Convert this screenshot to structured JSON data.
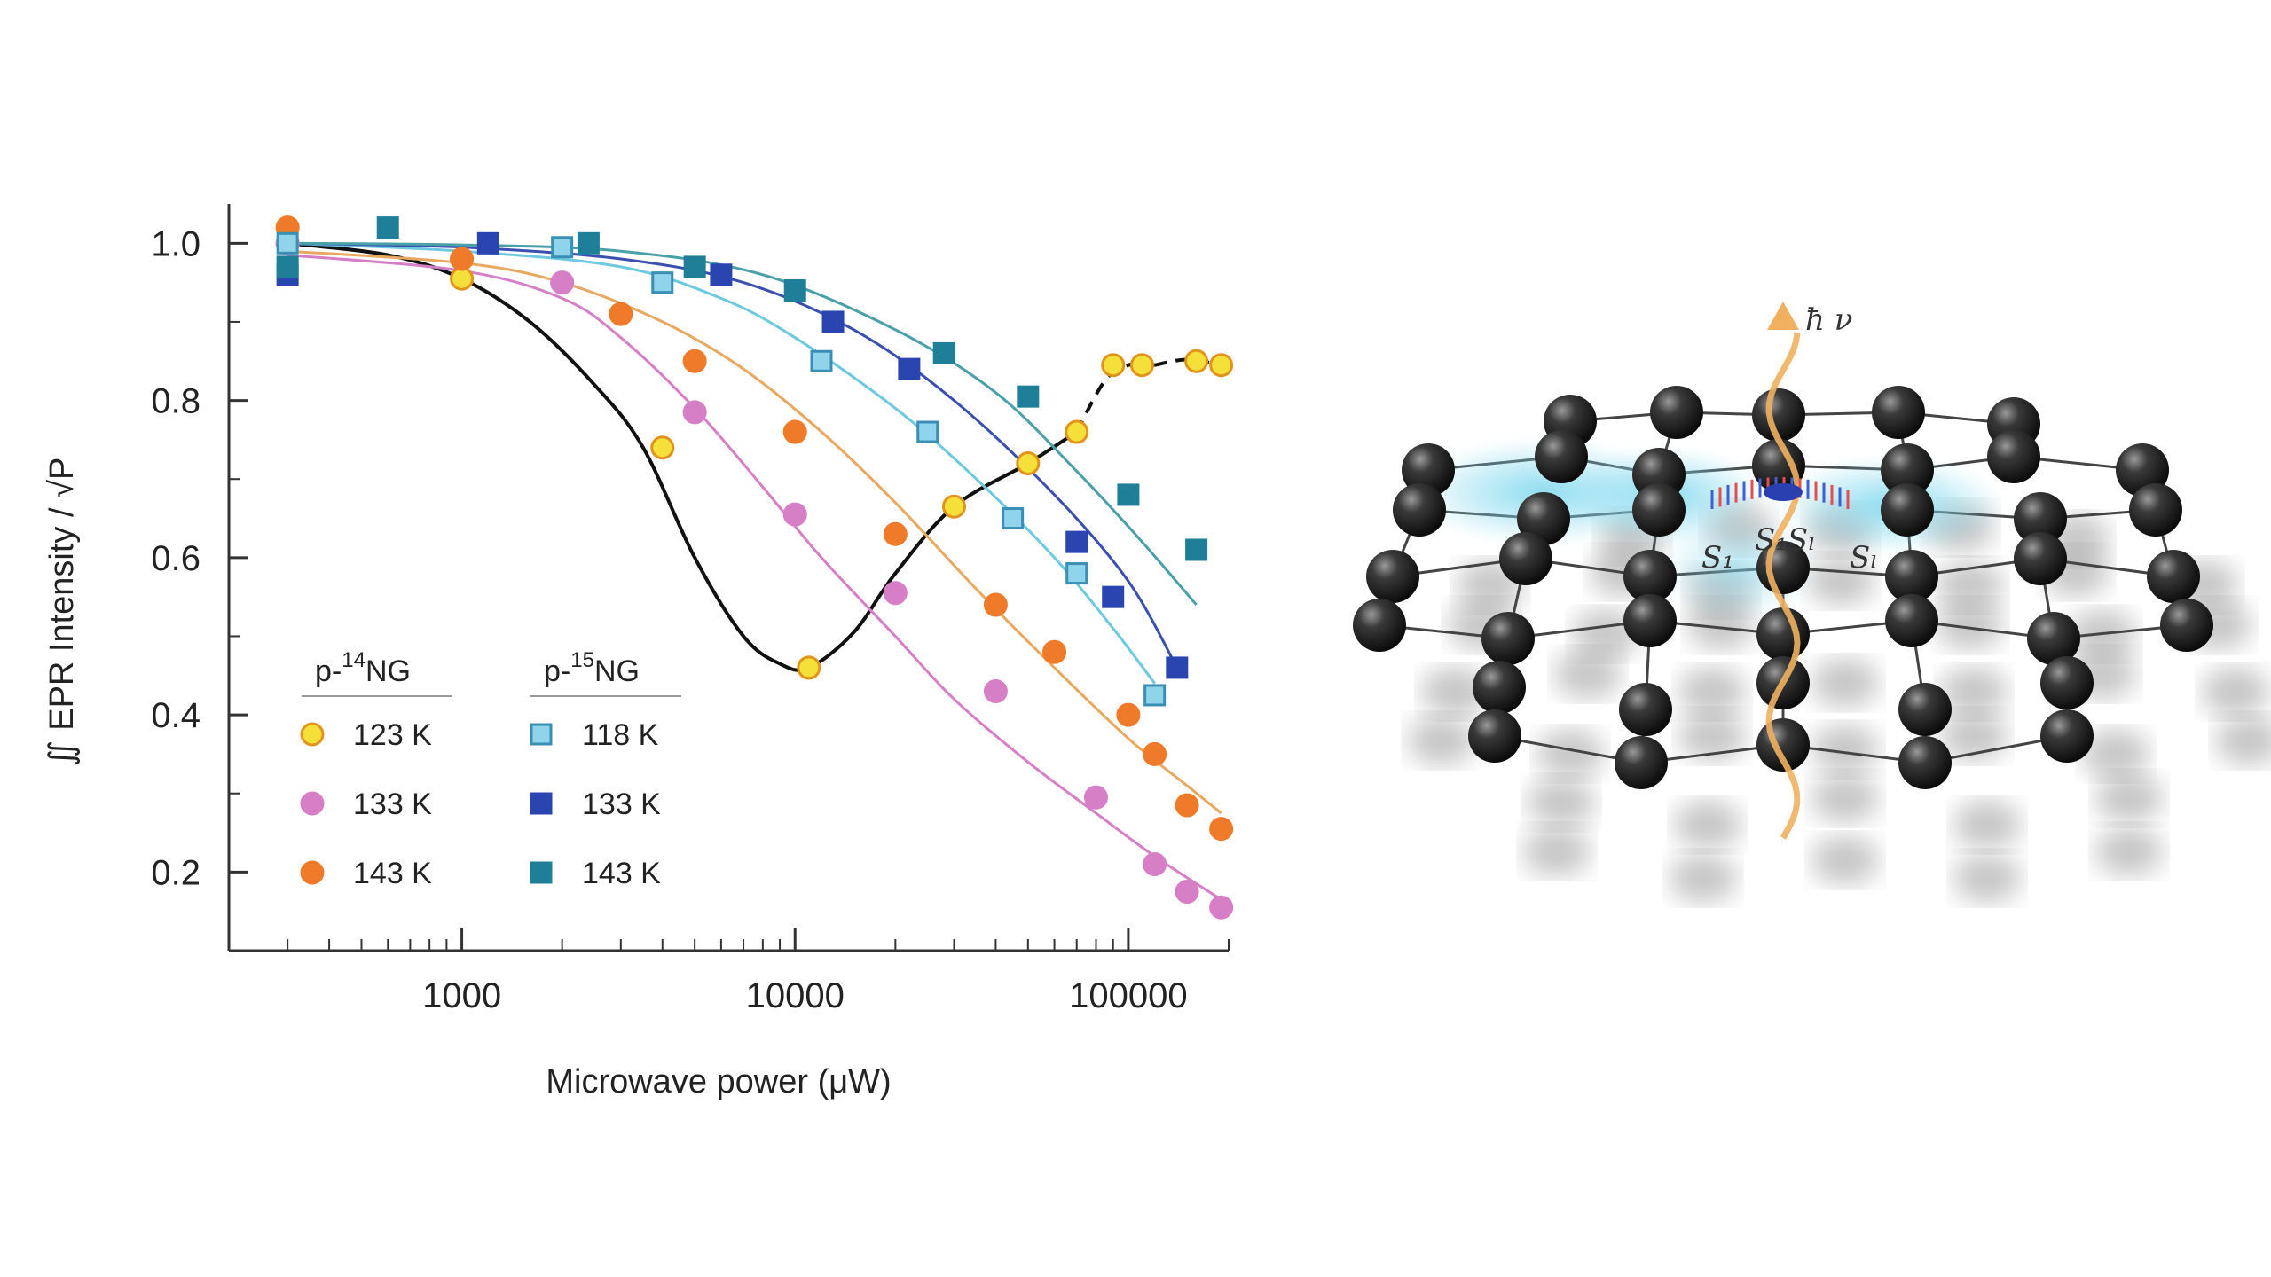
{
  "chart_data": {
    "type": "scatter",
    "xscale": "log",
    "xlim": [
      200,
      200000
    ],
    "ylim": [
      0.1,
      1.05
    ],
    "xticks": [
      1000,
      10000,
      100000
    ],
    "xtick_labels": [
      "1000",
      "10000",
      "100000"
    ],
    "yticks": [
      0.2,
      0.4,
      0.6,
      0.8,
      1.0
    ],
    "ytick_labels": [
      "0.2",
      "0.4",
      "0.6",
      "0.8",
      "1.0"
    ],
    "xlabel": "Microwave power (μW)",
    "ylabel": "∬ EPR Intensity / √P",
    "grid": false,
    "legend": {
      "placement": "lower-left",
      "groups": [
        {
          "prefix": "p-",
          "sup": "14",
          "suffix": "NG",
          "entries": [
            "123 K",
            "133 K",
            "143 K"
          ]
        },
        {
          "prefix": "p-",
          "sup": "15",
          "suffix": "NG",
          "entries": [
            "118 K",
            "133 K",
            "143 K"
          ]
        }
      ]
    },
    "series": [
      {
        "name": "123 K",
        "group": "p-14NG",
        "marker": "circle",
        "color": "#f5e03a",
        "edge": "#e0941b",
        "points": [
          [
            300,
            1.0
          ],
          [
            1000,
            0.955
          ],
          [
            4000,
            0.74
          ],
          [
            11000,
            0.46
          ],
          [
            30000,
            0.665
          ],
          [
            50000,
            0.72
          ],
          [
            70000,
            0.76
          ],
          [
            90000,
            0.845
          ],
          [
            110000,
            0.845
          ],
          [
            160000,
            0.85
          ],
          [
            190000,
            0.845
          ]
        ],
        "curve": [
          [
            300,
            1.0
          ],
          [
            600,
            0.985
          ],
          [
            1000,
            0.955
          ],
          [
            1600,
            0.9
          ],
          [
            2500,
            0.82
          ],
          [
            3500,
            0.74
          ],
          [
            5000,
            0.6
          ],
          [
            7000,
            0.5
          ],
          [
            9000,
            0.465
          ],
          [
            11000,
            0.46
          ],
          [
            15000,
            0.505
          ],
          [
            20000,
            0.58
          ],
          [
            30000,
            0.665
          ],
          [
            50000,
            0.72
          ],
          [
            70000,
            0.76
          ],
          [
            85000,
            0.825
          ],
          [
            100000,
            0.845
          ],
          [
            120000,
            0.845
          ],
          [
            150000,
            0.852
          ],
          [
            190000,
            0.845
          ]
        ],
        "curve_color": "#111111",
        "curve_dash": [
          [
            70000,
            120000
          ]
        ]
      },
      {
        "name": "133 K",
        "group": "p-14NG",
        "marker": "circle",
        "color": "#d67fc6",
        "edge": "#d67fc6",
        "points": [
          [
            300,
            1.0
          ],
          [
            2000,
            0.95
          ],
          [
            5000,
            0.785
          ],
          [
            10000,
            0.655
          ],
          [
            20000,
            0.555
          ],
          [
            40000,
            0.43
          ],
          [
            80000,
            0.295
          ],
          [
            120000,
            0.21
          ],
          [
            150000,
            0.175
          ],
          [
            190000,
            0.155
          ]
        ],
        "curve": [
          [
            300,
            0.985
          ],
          [
            1000,
            0.965
          ],
          [
            2000,
            0.93
          ],
          [
            3000,
            0.88
          ],
          [
            5000,
            0.79
          ],
          [
            8000,
            0.69
          ],
          [
            12000,
            0.6
          ],
          [
            20000,
            0.5
          ],
          [
            30000,
            0.42
          ],
          [
            50000,
            0.34
          ],
          [
            80000,
            0.275
          ],
          [
            120000,
            0.22
          ],
          [
            190000,
            0.165
          ]
        ],
        "curve_color": "#d67fc6"
      },
      {
        "name": "143 K",
        "group": "p-14NG",
        "marker": "circle",
        "color": "#ee7a2a",
        "edge": "#ee7a2a",
        "points": [
          [
            300,
            1.02
          ],
          [
            1000,
            0.98
          ],
          [
            3000,
            0.91
          ],
          [
            5000,
            0.85
          ],
          [
            10000,
            0.76
          ],
          [
            20000,
            0.63
          ],
          [
            40000,
            0.54
          ],
          [
            60000,
            0.48
          ],
          [
            100000,
            0.4
          ],
          [
            120000,
            0.35
          ],
          [
            150000,
            0.285
          ],
          [
            190000,
            0.255
          ]
        ],
        "curve": [
          [
            300,
            0.99
          ],
          [
            1000,
            0.975
          ],
          [
            2000,
            0.95
          ],
          [
            4000,
            0.9
          ],
          [
            7000,
            0.84
          ],
          [
            12000,
            0.76
          ],
          [
            20000,
            0.67
          ],
          [
            35000,
            0.56
          ],
          [
            60000,
            0.46
          ],
          [
            100000,
            0.37
          ],
          [
            150000,
            0.31
          ],
          [
            190000,
            0.275
          ]
        ],
        "curve_color": "#e8a860"
      },
      {
        "name": "118 K",
        "group": "p-15NG",
        "marker": "square",
        "color": "#8fd4ea",
        "edge": "#3b8fb5",
        "points": [
          [
            300,
            1.0
          ],
          [
            2000,
            0.995
          ],
          [
            4000,
            0.95
          ],
          [
            12000,
            0.85
          ],
          [
            25000,
            0.76
          ],
          [
            45000,
            0.65
          ],
          [
            70000,
            0.58
          ],
          [
            120000,
            0.425
          ]
        ],
        "curve": [
          [
            300,
            1.0
          ],
          [
            1000,
            0.99
          ],
          [
            3000,
            0.97
          ],
          [
            6000,
            0.93
          ],
          [
            10000,
            0.88
          ],
          [
            20000,
            0.79
          ],
          [
            35000,
            0.7
          ],
          [
            60000,
            0.6
          ],
          [
            90000,
            0.51
          ],
          [
            120000,
            0.44
          ]
        ],
        "curve_color": "#6cc9e0"
      },
      {
        "name": "133 K",
        "group": "p-15NG",
        "marker": "square",
        "color": "#2a45b0",
        "edge": "#2a45b0",
        "points": [
          [
            300,
            0.96
          ],
          [
            1200,
            1.0
          ],
          [
            6000,
            0.96
          ],
          [
            13000,
            0.9
          ],
          [
            22000,
            0.84
          ],
          [
            70000,
            0.62
          ],
          [
            90000,
            0.55
          ],
          [
            140000,
            0.46
          ]
        ],
        "curve": [
          [
            300,
            1.0
          ],
          [
            1000,
            0.995
          ],
          [
            3000,
            0.98
          ],
          [
            7000,
            0.95
          ],
          [
            15000,
            0.89
          ],
          [
            30000,
            0.8
          ],
          [
            60000,
            0.68
          ],
          [
            100000,
            0.57
          ],
          [
            140000,
            0.46
          ]
        ],
        "curve_color": "#3a4fb0"
      },
      {
        "name": "143 K",
        "group": "p-15NG",
        "marker": "square",
        "color": "#1f7f98",
        "edge": "#1f7f98",
        "points": [
          [
            300,
            0.97
          ],
          [
            600,
            1.02
          ],
          [
            2400,
            1.0
          ],
          [
            5000,
            0.97
          ],
          [
            10000,
            0.94
          ],
          [
            28000,
            0.86
          ],
          [
            50000,
            0.805
          ],
          [
            100000,
            0.68
          ],
          [
            160000,
            0.61
          ]
        ],
        "curve": [
          [
            300,
            1.0
          ],
          [
            1000,
            0.998
          ],
          [
            3000,
            0.99
          ],
          [
            8000,
            0.96
          ],
          [
            20000,
            0.89
          ],
          [
            40000,
            0.81
          ],
          [
            70000,
            0.71
          ],
          [
            110000,
            0.62
          ],
          [
            160000,
            0.54
          ]
        ],
        "curve_color": "#4aa0a8"
      }
    ]
  },
  "illustration": {
    "labels": {
      "hv": "ħ ν",
      "s1": "S₁",
      "s2": "S₁Sₗ",
      "s3": "Sₗ"
    },
    "colors": {
      "atom": "#2b2b2b",
      "cloud": "#7fd8ee",
      "photon": "#f0b060"
    }
  }
}
